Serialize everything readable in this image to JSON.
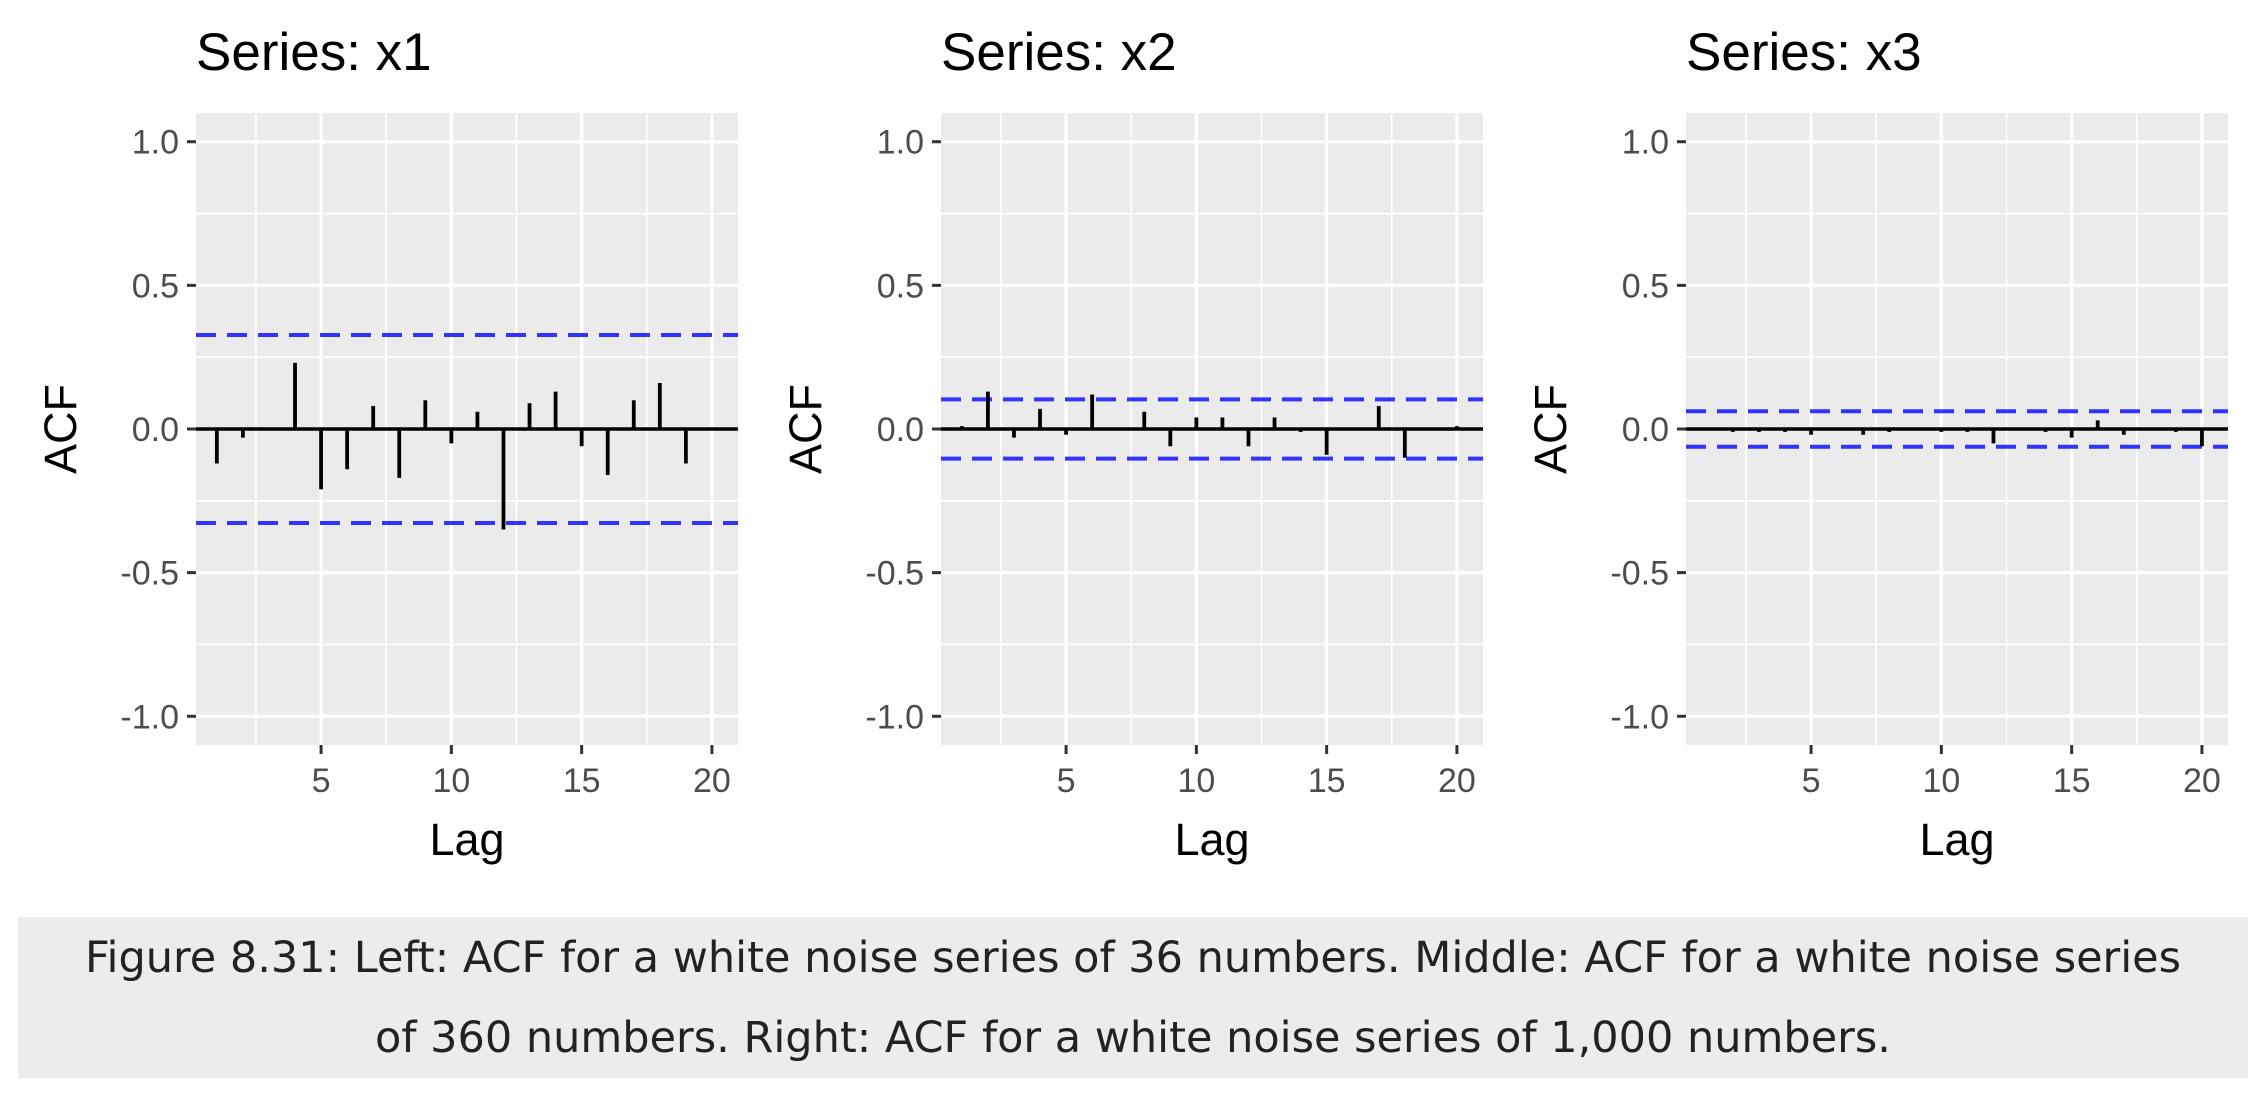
{
  "caption": "Figure 8.31: Left: ACF for a white noise series of 36 numbers. Middle: ACF for a white noise series of 360 numbers. Right: ACF for a white noise series of 1,000 numbers.",
  "colors": {
    "panel_bg": "#ebebeb",
    "grid": "#ffffff",
    "bar": "#000000",
    "ci_line": "#3333ff",
    "text": "#222222",
    "tick_text": "#4d4d4d"
  },
  "chart_data": [
    {
      "type": "bar",
      "title": "Series: x1",
      "xlabel": "Lag",
      "ylabel": "ACF",
      "xlim": [
        0.2,
        21
      ],
      "ylim": [
        -1.1,
        1.1
      ],
      "xticks": [
        5,
        10,
        15,
        20
      ],
      "yticks": [
        1.0,
        0.5,
        0.0,
        -0.5,
        -1.0
      ],
      "ytick_labels": [
        "1.0",
        "0.5",
        "0.0",
        "-0.5",
        "-1.0"
      ],
      "grid": true,
      "conf_limit": 0.327,
      "lags": [
        1,
        2,
        3,
        4,
        5,
        6,
        7,
        8,
        9,
        10,
        11,
        12,
        13,
        14,
        15,
        16,
        17,
        18,
        19,
        20
      ],
      "values": [
        -0.12,
        -0.03,
        0.0,
        0.23,
        -0.21,
        -0.14,
        0.08,
        -0.17,
        0.1,
        -0.05,
        0.06,
        -0.35,
        0.09,
        0.13,
        -0.06,
        -0.16,
        0.1,
        0.16,
        -0.12,
        0.0
      ]
    },
    {
      "type": "bar",
      "title": "Series: x2",
      "xlabel": "Lag",
      "ylabel": "ACF",
      "xlim": [
        0.2,
        21
      ],
      "ylim": [
        -1.1,
        1.1
      ],
      "xticks": [
        5,
        10,
        15,
        20
      ],
      "yticks": [
        1.0,
        0.5,
        0.0,
        -0.5,
        -1.0
      ],
      "ytick_labels": [
        "1.0",
        "0.5",
        "0.0",
        "-0.5",
        "-1.0"
      ],
      "grid": true,
      "conf_limit": 0.103,
      "lags": [
        1,
        2,
        3,
        4,
        5,
        6,
        7,
        8,
        9,
        10,
        11,
        12,
        13,
        14,
        15,
        16,
        17,
        18,
        19,
        20
      ],
      "values": [
        0.01,
        0.13,
        -0.03,
        0.07,
        -0.02,
        0.12,
        0.0,
        0.06,
        -0.06,
        0.04,
        0.04,
        -0.06,
        0.04,
        -0.01,
        -0.09,
        0.0,
        0.08,
        -0.1,
        0.0,
        0.01
      ]
    },
    {
      "type": "bar",
      "title": "Series: x3",
      "xlabel": "Lag",
      "ylabel": "ACF",
      "xlim": [
        0.2,
        21
      ],
      "ylim": [
        -1.1,
        1.1
      ],
      "xticks": [
        5,
        10,
        15,
        20
      ],
      "yticks": [
        1.0,
        0.5,
        0.0,
        -0.5,
        -1.0
      ],
      "ytick_labels": [
        "1.0",
        "0.5",
        "0.0",
        "-0.5",
        "-1.0"
      ],
      "grid": true,
      "conf_limit": 0.062,
      "lags": [
        1,
        2,
        3,
        4,
        5,
        6,
        7,
        8,
        9,
        10,
        11,
        12,
        13,
        14,
        15,
        16,
        17,
        18,
        19,
        20
      ],
      "values": [
        0.0,
        -0.01,
        -0.01,
        -0.01,
        -0.02,
        0.0,
        -0.02,
        -0.01,
        0.0,
        -0.01,
        -0.01,
        -0.05,
        0.0,
        -0.01,
        -0.03,
        0.03,
        -0.02,
        0.0,
        -0.01,
        -0.06
      ]
    }
  ]
}
